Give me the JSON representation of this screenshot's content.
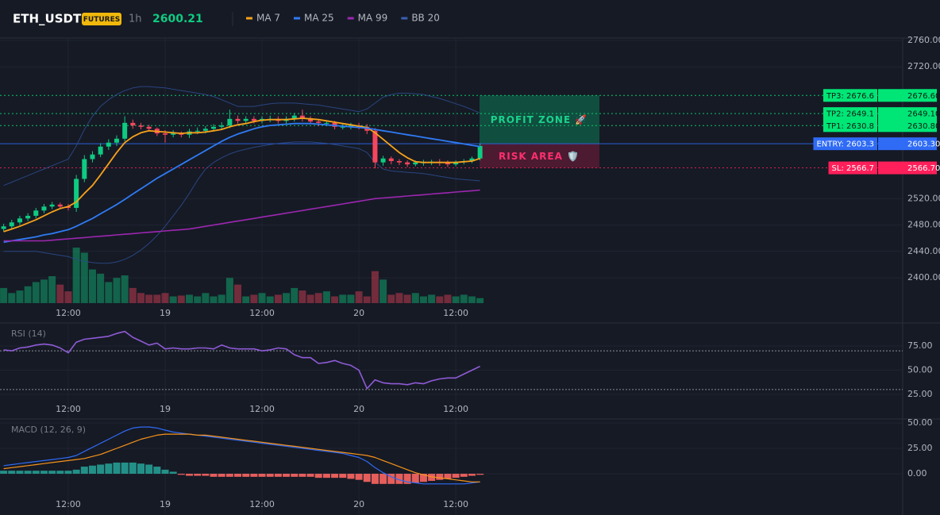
{
  "chart_data": [
    {
      "type": "candlestick",
      "symbol": "ETH_USDT",
      "badge": "FUTURES",
      "interval": "1h",
      "last_price": 2600.21,
      "categories": [
        null,
        null,
        null,
        null,
        null,
        null,
        null,
        null,
        "12:00",
        null,
        null,
        null,
        null,
        null,
        null,
        null,
        null,
        null,
        null,
        null,
        "19",
        null,
        null,
        null,
        null,
        null,
        null,
        null,
        null,
        null,
        null,
        null,
        "12:00",
        null,
        null,
        null,
        null,
        null,
        null,
        null,
        null,
        null,
        null,
        null,
        "20",
        null,
        null,
        null,
        null,
        null,
        null,
        null,
        null,
        null,
        null,
        null,
        "12:00",
        null,
        null,
        null
      ],
      "open": [
        2474,
        2478,
        2484,
        2490,
        2494,
        2502,
        2508,
        2511,
        2508,
        2506,
        2550,
        2580,
        2587,
        2599,
        2605,
        2611,
        2635,
        2631,
        2629,
        2626,
        2619,
        2617,
        2619,
        2617,
        2622,
        2623,
        2626,
        2629,
        2631,
        2641,
        2638,
        2641,
        2638,
        2641,
        2641,
        2638,
        2641,
        2646,
        2641,
        2637,
        2635,
        2635,
        2629,
        2629,
        2631,
        2629,
        2623,
        2575,
        2581,
        2577,
        2575,
        2572,
        2575,
        2575,
        2576,
        2575,
        2572,
        2576,
        2577,
        2581
      ],
      "high": [
        2482,
        2488,
        2494,
        2498,
        2506,
        2512,
        2515,
        2514,
        2512,
        2556,
        2586,
        2592,
        2604,
        2610,
        2616,
        2645,
        2640,
        2635,
        2632,
        2628,
        2624,
        2624,
        2622,
        2626,
        2628,
        2630,
        2633,
        2636,
        2655,
        2646,
        2645,
        2645,
        2645,
        2646,
        2645,
        2645,
        2650,
        2655,
        2645,
        2640,
        2639,
        2638,
        2634,
        2635,
        2635,
        2633,
        2627,
        2585,
        2584,
        2580,
        2578,
        2578,
        2579,
        2579,
        2580,
        2578,
        2578,
        2580,
        2584,
        2604
      ],
      "low": [
        2470,
        2474,
        2480,
        2486,
        2490,
        2498,
        2504,
        2505,
        2502,
        2500,
        2545,
        2575,
        2583,
        2594,
        2600,
        2607,
        2626,
        2625,
        2622,
        2615,
        2605,
        2613,
        2613,
        2612,
        2618,
        2619,
        2622,
        2625,
        2627,
        2634,
        2634,
        2634,
        2634,
        2636,
        2634,
        2634,
        2637,
        2637,
        2633,
        2630,
        2630,
        2625,
        2625,
        2625,
        2625,
        2618,
        2566,
        2570,
        2572,
        2571,
        2568,
        2569,
        2570,
        2571,
        2570,
        2568,
        2569,
        2572,
        2574,
        2578
      ],
      "close": [
        2478,
        2484,
        2490,
        2494,
        2502,
        2508,
        2511,
        2508,
        2506,
        2550,
        2580,
        2587,
        2599,
        2605,
        2611,
        2635,
        2631,
        2629,
        2626,
        2619,
        2617,
        2619,
        2617,
        2622,
        2623,
        2626,
        2629,
        2631,
        2641,
        2638,
        2641,
        2638,
        2641,
        2641,
        2638,
        2641,
        2646,
        2641,
        2637,
        2635,
        2635,
        2629,
        2629,
        2631,
        2629,
        2623,
        2575,
        2581,
        2577,
        2575,
        2572,
        2575,
        2575,
        2576,
        2575,
        2572,
        2576,
        2577,
        2581,
        2600
      ],
      "volume": [
        18,
        12,
        15,
        20,
        25,
        28,
        32,
        22,
        14,
        66,
        60,
        40,
        35,
        25,
        30,
        33,
        18,
        12,
        10,
        10,
        12,
        8,
        9,
        10,
        8,
        12,
        8,
        10,
        30,
        22,
        8,
        10,
        12,
        8,
        10,
        12,
        18,
        15,
        10,
        12,
        14,
        8,
        10,
        10,
        14,
        8,
        38,
        28,
        10,
        12,
        10,
        12,
        8,
        10,
        8,
        10,
        8,
        10,
        8,
        6
      ],
      "up_color": "#0ecb81",
      "down_color": "#f6465d",
      "series": [
        {
          "name": "MA 7",
          "color": "#f7a21b",
          "values": [
            2470,
            2474,
            2478,
            2483,
            2488,
            2494,
            2500,
            2505,
            2508,
            2515,
            2528,
            2540,
            2556,
            2573,
            2590,
            2605,
            2614,
            2620,
            2623,
            2622,
            2621,
            2620,
            2619,
            2620,
            2620,
            2621,
            2623,
            2625,
            2629,
            2632,
            2634,
            2637,
            2639,
            2640,
            2640,
            2640,
            2641,
            2642,
            2641,
            2640,
            2638,
            2636,
            2634,
            2632,
            2630,
            2628,
            2620,
            2610,
            2600,
            2590,
            2582,
            2576,
            2575,
            2575,
            2575,
            2575,
            2575,
            2576,
            2577,
            2581
          ]
        },
        {
          "name": "MA 25",
          "color": "#2f7bf5",
          "values": [
            2454,
            2456,
            2458,
            2460,
            2462,
            2465,
            2467,
            2470,
            2473,
            2478,
            2484,
            2490,
            2497,
            2504,
            2511,
            2519,
            2527,
            2535,
            2543,
            2551,
            2558,
            2565,
            2572,
            2579,
            2586,
            2593,
            2600,
            2607,
            2613,
            2618,
            2622,
            2626,
            2629,
            2631,
            2632,
            2633,
            2634,
            2634,
            2634,
            2633,
            2632,
            2631,
            2630,
            2629,
            2628,
            2627,
            2625,
            2623,
            2621,
            2619,
            2617,
            2615,
            2613,
            2611,
            2609,
            2607,
            2605,
            2603,
            2601,
            2599
          ]
        },
        {
          "name": "MA 99",
          "color": "#9c27b0",
          "values": [
            2456,
            2456,
            2456,
            2456,
            2456,
            2456,
            2457,
            2458,
            2459,
            2460,
            2461,
            2462,
            2463,
            2464,
            2465,
            2466,
            2467,
            2468,
            2469,
            2470,
            2471,
            2472,
            2473,
            2474,
            2476,
            2478,
            2480,
            2482,
            2484,
            2486,
            2488,
            2490,
            2492,
            2494,
            2496,
            2498,
            2500,
            2502,
            2504,
            2506,
            2508,
            2510,
            2512,
            2514,
            2516,
            2518,
            2520,
            2521,
            2522,
            2523,
            2524,
            2525,
            2526,
            2527,
            2528,
            2529,
            2530,
            2531,
            2532,
            2533
          ]
        },
        {
          "name": "BB 20",
          "color": "#2a4a8a",
          "values": [
            2540,
            2545,
            2550,
            2555,
            2560,
            2565,
            2570,
            2575,
            2580,
            2600,
            2625,
            2645,
            2660,
            2670,
            2678,
            2684,
            2688,
            2690,
            2690,
            2689,
            2688,
            2686,
            2684,
            2682,
            2680,
            2678,
            2675,
            2670,
            2665,
            2660,
            2660,
            2660,
            2662,
            2664,
            2665,
            2665,
            2665,
            2664,
            2663,
            2662,
            2660,
            2658,
            2656,
            2654,
            2652,
            2656,
            2665,
            2674,
            2678,
            2680,
            2680,
            2679,
            2678,
            2675,
            2672,
            2668,
            2664,
            2660,
            2655,
            2650
          ],
          "lower": [
            2440,
            2440,
            2440,
            2440,
            2440,
            2438,
            2436,
            2434,
            2432,
            2428,
            2425,
            2423,
            2422,
            2422,
            2424,
            2428,
            2434,
            2442,
            2452,
            2464,
            2478,
            2494,
            2510,
            2528,
            2548,
            2565,
            2575,
            2582,
            2588,
            2592,
            2595,
            2598,
            2600,
            2602,
            2604,
            2605,
            2606,
            2606,
            2606,
            2605,
            2604,
            2602,
            2600,
            2598,
            2596,
            2590,
            2575,
            2565,
            2562,
            2561,
            2560,
            2559,
            2558,
            2556,
            2554,
            2552,
            2550,
            2549,
            2548,
            2547
          ]
        }
      ],
      "ylim": [
        2361.5,
        2763.6
      ],
      "yticks": [
        {
          "value": 2760,
          "label": "2760.00"
        },
        {
          "value": 2720,
          "label": "2720.00"
        },
        {
          "value": 2520,
          "label": "2520.00"
        },
        {
          "value": 2480,
          "label": "2480.00"
        },
        {
          "value": 2440,
          "label": "2440.00"
        },
        {
          "value": 2400,
          "label": "2400.00"
        }
      ],
      "grid": true,
      "levels": [
        {
          "name": "TP3: 2676.6",
          "value": 2676.6,
          "value_label": "2676.60",
          "color": "#00e676",
          "text_color": "#0b1a12",
          "style": "dotted"
        },
        {
          "name": "TP2: 2649.1",
          "value": 2649.1,
          "value_label": "2649.10",
          "color": "#00e676",
          "text_color": "#0b1a12",
          "style": "dotted"
        },
        {
          "name": "TP1: 2630.8",
          "value": 2630.8,
          "value_label": "2630.80",
          "color": "#00e676",
          "text_color": "#0b1a12",
          "style": "dotted"
        },
        {
          "name": "ENTRY: 2603.3",
          "value": 2603.3,
          "value_label": "2603.30",
          "color": "#2f6bf5",
          "text_color": "#ffffff",
          "style": "solid"
        },
        {
          "name": "SL: 2566.7",
          "value": 2566.7,
          "value_label": "2566.70",
          "color": "#ff1f5a",
          "text_color": "#ffffff",
          "style": "dotted"
        }
      ],
      "zones": [
        {
          "label": "PROFIT ZONE 🚀",
          "from": 2603.3,
          "to": 2676.6,
          "color": "#0c7a56",
          "text_color": "#19d38c"
        },
        {
          "label": "RISK AREA 🛡️",
          "from": 2566.7,
          "to": 2603.3,
          "color": "#7a1d3c",
          "text_color": "#ff2f6d"
        }
      ]
    },
    {
      "type": "line",
      "title": "RSI (14)",
      "categories": [
        null,
        null,
        null,
        null,
        null,
        null,
        null,
        null,
        "12:00",
        null,
        null,
        null,
        null,
        null,
        null,
        null,
        null,
        null,
        null,
        null,
        "19",
        null,
        null,
        null,
        null,
        null,
        null,
        null,
        null,
        null,
        null,
        null,
        "12:00",
        null,
        null,
        null,
        null,
        null,
        null,
        null,
        null,
        null,
        null,
        null,
        "20",
        null,
        null,
        null,
        null,
        null,
        null,
        null,
        null,
        null,
        null,
        null,
        "12:00",
        null,
        null,
        null
      ],
      "series": [
        {
          "color": "#8e5bd6",
          "values": [
            71,
            70,
            73,
            74,
            76,
            77,
            76,
            73,
            68,
            79,
            82,
            83,
            84,
            85,
            88,
            90,
            84,
            80,
            76,
            78,
            72,
            73,
            72,
            72,
            73,
            73,
            72,
            76,
            73,
            72,
            72,
            72,
            70,
            71,
            73,
            72,
            66,
            63,
            63,
            57,
            58,
            60,
            57,
            55,
            50,
            31,
            40,
            37,
            36,
            36,
            35,
            37,
            36,
            39,
            41,
            42,
            42,
            46,
            50,
            54
          ]
        }
      ],
      "guides": [
        70,
        30
      ],
      "ylim": [
        -0.4,
        98.8
      ],
      "yticks": [
        {
          "value": 75,
          "label": "75.00"
        },
        {
          "value": 50,
          "label": "50.00"
        },
        {
          "value": 25,
          "label": "25.00"
        }
      ],
      "grid": true
    },
    {
      "type": "macd",
      "title": "MACD (12, 26, 9)",
      "categories": [
        null,
        null,
        null,
        null,
        null,
        null,
        null,
        null,
        "12:00",
        null,
        null,
        null,
        null,
        null,
        null,
        null,
        null,
        null,
        null,
        null,
        "19",
        null,
        null,
        null,
        null,
        null,
        null,
        null,
        null,
        null,
        null,
        null,
        "12:00",
        null,
        null,
        null,
        null,
        null,
        null,
        null,
        null,
        null,
        null,
        null,
        "20",
        null,
        null,
        null,
        null,
        null,
        null,
        null,
        null,
        null,
        null,
        null,
        "12:00",
        null,
        null,
        null
      ],
      "series": [
        {
          "color": "#2f6bf5",
          "values": [
            8,
            9,
            10,
            11,
            12,
            13,
            14,
            15,
            16,
            18,
            22,
            26,
            30,
            34,
            38,
            42,
            45,
            46,
            46,
            45,
            43,
            41,
            40,
            39,
            38,
            37,
            36,
            35,
            34,
            33,
            32,
            31,
            30,
            29,
            28,
            27,
            26,
            25,
            24,
            23,
            22,
            21,
            20,
            18,
            16,
            12,
            6,
            1,
            -3,
            -6,
            -8,
            -9,
            -10,
            -10,
            -10,
            -10,
            -10,
            -10,
            -9,
            -8
          ]
        },
        {
          "color": "#f7931a",
          "values": [
            5,
            6,
            7,
            8,
            9,
            10,
            11,
            12,
            13,
            14,
            15,
            17,
            19,
            22,
            25,
            28,
            31,
            34,
            36,
            38,
            39,
            39,
            39,
            39,
            38,
            38,
            37,
            36,
            35,
            34,
            33,
            32,
            31,
            30,
            29,
            28,
            27,
            26,
            25,
            24,
            23,
            22,
            21,
            20,
            19,
            18,
            16,
            13,
            10,
            7,
            4,
            1,
            -1,
            -3,
            -4,
            -5,
            -6,
            -7,
            -8,
            -8
          ]
        }
      ],
      "histogram": {
        "up_color": "#26a69a",
        "down_color": "#f0625f",
        "values": [
          3,
          3,
          3,
          3,
          3,
          3,
          3,
          3,
          3,
          4,
          7,
          8,
          9,
          10,
          11,
          11,
          11,
          10,
          9,
          7,
          4,
          2,
          -1,
          -2,
          -2,
          -2,
          -3,
          -3,
          -3,
          -3,
          -3,
          -3,
          -3,
          -3,
          -3,
          -3,
          -3,
          -3,
          -3,
          -4,
          -4,
          -4,
          -4,
          -5,
          -6,
          -8,
          -10,
          -10,
          -10,
          -10,
          -10,
          -9,
          -8,
          -7,
          -6,
          -5,
          -4,
          -3,
          -2,
          -1
        ]
      },
      "ylim": [
        -40.6,
        53.9
      ],
      "yticks": [
        {
          "value": 50,
          "label": "50.00"
        },
        {
          "value": 25,
          "label": "25.00"
        },
        {
          "value": 0,
          "label": "0.00"
        }
      ],
      "grid": true
    }
  ]
}
